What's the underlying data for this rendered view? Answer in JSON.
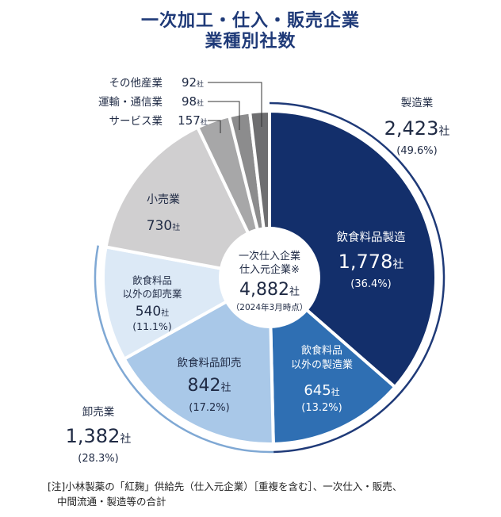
{
  "title_line1": "一次加工・仕入・販売企業",
  "title_line2": "業種別社数",
  "chart_data": {
    "type": "pie",
    "title": "一次加工・仕入・販売企業 業種別社数",
    "unit": "社",
    "center": {
      "line1": "一次仕入企業",
      "line2": "仕入元企業※",
      "total": "4,882",
      "unit": "社",
      "date": "（2024年3月時点）"
    },
    "slices": [
      {
        "label": "飲食料品製造",
        "value": 1778,
        "value_text": "1,778",
        "pct": "(36.4%)",
        "color": "#132f6b",
        "text_color": "#ffffff"
      },
      {
        "label_lines": [
          "飲食料品",
          "以外の製造業"
        ],
        "value": 645,
        "value_text": "645",
        "pct": "(13.2%)",
        "color": "#2f6fb3",
        "text_color": "#ffffff"
      },
      {
        "label": "飲食料品卸売",
        "value": 842,
        "value_text": "842",
        "pct": "(17.2%)",
        "color": "#a9c8e8",
        "text_color": "#1f2a44"
      },
      {
        "label_lines": [
          "飲食料品",
          "以外の卸売業"
        ],
        "value": 540,
        "value_text": "540",
        "pct": "(11.1%)",
        "color": "#dce9f6",
        "text_color": "#1f2a44"
      },
      {
        "label": "小売業",
        "value": 730,
        "value_text": "730",
        "pct": "",
        "color": "#d0cfd0",
        "text_color": "#1f2a44"
      },
      {
        "label": "サービス業",
        "value": 157,
        "value_text": "157",
        "color": "#a7a7a8"
      },
      {
        "label": "運輸・通信業",
        "value": 98,
        "value_text": "98",
        "color": "#8c8c8d"
      },
      {
        "label": "その他産業",
        "value": 92,
        "value_text": "92",
        "color": "#6e6e70"
      }
    ],
    "groups": [
      {
        "label": "製造業",
        "value_text": "2,423",
        "unit": "社",
        "pct": "(49.6%)"
      },
      {
        "label": "卸売業",
        "value_text": "1,382",
        "unit": "社",
        "pct": "(28.3%)"
      }
    ]
  },
  "note_line1": "[注]小林製薬の「紅麹」供給先（仕入元企業）［重複を含む］、一次仕入・販売、",
  "note_line2": "中間流通・製造等の合計"
}
